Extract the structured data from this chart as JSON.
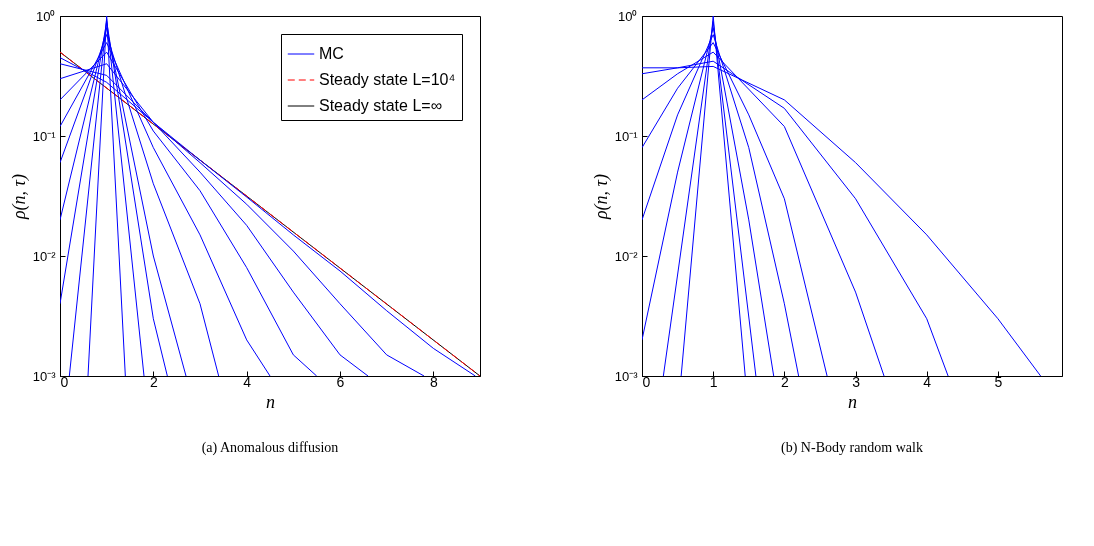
{
  "chart_data": [
    {
      "type": "line",
      "title": "(a) Anomalous diffusion",
      "xlabel": "n",
      "ylabel": "ρ(n, τ)",
      "log": "y",
      "grid": false,
      "legend": "top right",
      "marker": "none",
      "xlim": [
        0,
        9
      ],
      "xticks": [
        0,
        2,
        4,
        6,
        8
      ],
      "ylim": [
        0.001,
        1
      ],
      "yticks": [
        {
          "value": 0.001,
          "label": "10⁻³"
        },
        {
          "value": 0.01,
          "label": "10⁻²"
        },
        {
          "value": 0.1,
          "label": "10⁻¹"
        },
        {
          "value": 1,
          "label": "10⁰"
        }
      ],
      "series": [
        {
          "name": "MC",
          "color": "#0000ff",
          "line_style": "solid",
          "x": [
            0.6,
            1,
            1.4
          ],
          "values": [
            0.001,
            1,
            0.001
          ]
        },
        {
          "color": "#0000ff",
          "line_style": "solid",
          "x": [
            0.2,
            1,
            1.8
          ],
          "values": [
            0.001,
            0.95,
            0.001
          ]
        },
        {
          "color": "#0000ff",
          "line_style": "solid",
          "x": [
            0,
            1,
            2,
            2.3
          ],
          "values": [
            0.004,
            0.9,
            0.003,
            0.001
          ]
        },
        {
          "color": "#0000ff",
          "line_style": "solid",
          "x": [
            0,
            1,
            2,
            2.7
          ],
          "values": [
            0.02,
            0.8,
            0.01,
            0.001
          ]
        },
        {
          "color": "#0000ff",
          "line_style": "solid",
          "x": [
            0,
            1,
            2,
            3,
            3.4
          ],
          "values": [
            0.06,
            0.7,
            0.04,
            0.004,
            0.001
          ]
        },
        {
          "color": "#0000ff",
          "line_style": "solid",
          "x": [
            0,
            1,
            2,
            3,
            4,
            4.5
          ],
          "values": [
            0.12,
            0.6,
            0.08,
            0.015,
            0.002,
            0.001
          ]
        },
        {
          "color": "#0000ff",
          "line_style": "solid",
          "x": [
            0,
            1,
            2,
            3,
            4,
            5,
            5.5
          ],
          "values": [
            0.2,
            0.5,
            0.11,
            0.035,
            0.008,
            0.0015,
            0.001
          ]
        },
        {
          "color": "#0000ff",
          "line_style": "solid",
          "x": [
            0,
            1,
            2,
            3,
            4,
            5,
            6,
            6.6
          ],
          "values": [
            0.3,
            0.4,
            0.13,
            0.05,
            0.018,
            0.005,
            0.0015,
            0.001
          ]
        },
        {
          "color": "#0000ff",
          "line_style": "solid",
          "x": [
            0,
            1,
            2,
            3,
            4,
            5,
            6,
            7,
            7.8
          ],
          "values": [
            0.4,
            0.32,
            0.13,
            0.06,
            0.027,
            0.011,
            0.004,
            0.0015,
            0.001
          ]
        },
        {
          "color": "#0000ff",
          "line_style": "solid",
          "x": [
            0,
            1,
            2,
            3,
            4,
            5,
            6,
            7,
            8,
            8.9
          ],
          "values": [
            0.45,
            0.28,
            0.13,
            0.063,
            0.031,
            0.015,
            0.0075,
            0.0035,
            0.0017,
            0.001
          ]
        },
        {
          "name": "Steady state L=10⁴",
          "color": "#ff0000",
          "line_style": "dashed",
          "x": [
            0,
            9
          ],
          "values": [
            0.5,
            0.001
          ]
        },
        {
          "name": "Steady state L=∞",
          "color": "#000000",
          "line_style": "solid",
          "x": [
            0,
            9
          ],
          "values": [
            0.5,
            0.001
          ]
        }
      ]
    },
    {
      "type": "line",
      "title": "(b) N-Body random walk",
      "xlabel": "n",
      "ylabel": "ρ(n, τ)",
      "log": "y",
      "grid": false,
      "marker": "none",
      "xlim": [
        0,
        5.9
      ],
      "xticks": [
        0,
        1,
        2,
        3,
        4,
        5
      ],
      "ylim": [
        0.001,
        1
      ],
      "yticks": [
        {
          "value": 0.001,
          "label": "10⁻³"
        },
        {
          "value": 0.01,
          "label": "10⁻²"
        },
        {
          "value": 0.1,
          "label": "10⁻¹"
        },
        {
          "value": 1,
          "label": "10⁰"
        }
      ],
      "series": [
        {
          "color": "#0000ff",
          "line_style": "solid",
          "x": [
            0.55,
            1,
            1.45
          ],
          "values": [
            0.001,
            1,
            0.001
          ]
        },
        {
          "color": "#0000ff",
          "line_style": "solid",
          "x": [
            0.3,
            1,
            1.6
          ],
          "values": [
            0.001,
            0.9,
            0.001
          ]
        },
        {
          "color": "#0000ff",
          "line_style": "solid",
          "x": [
            0,
            0.5,
            1,
            1.5,
            1.85
          ],
          "values": [
            0.002,
            0.05,
            0.8,
            0.02,
            0.001
          ]
        },
        {
          "color": "#0000ff",
          "line_style": "solid",
          "x": [
            0,
            0.5,
            1,
            1.5,
            2,
            2.2
          ],
          "values": [
            0.02,
            0.15,
            0.7,
            0.08,
            0.004,
            0.001
          ]
        },
        {
          "color": "#0000ff",
          "line_style": "solid",
          "x": [
            0,
            0.5,
            1,
            1.5,
            2,
            2.6
          ],
          "values": [
            0.08,
            0.25,
            0.6,
            0.15,
            0.03,
            0.001
          ]
        },
        {
          "color": "#0000ff",
          "line_style": "solid",
          "x": [
            0,
            0.5,
            1,
            2,
            3,
            3.4
          ],
          "values": [
            0.2,
            0.33,
            0.5,
            0.12,
            0.005,
            0.001
          ]
        },
        {
          "color": "#0000ff",
          "line_style": "solid",
          "x": [
            0,
            0.5,
            1,
            2,
            3,
            4,
            4.3
          ],
          "values": [
            0.33,
            0.37,
            0.42,
            0.17,
            0.03,
            0.003,
            0.001
          ]
        },
        {
          "color": "#0000ff",
          "line_style": "solid",
          "x": [
            0,
            0.5,
            1,
            2,
            3,
            4,
            5,
            5.6
          ],
          "values": [
            0.37,
            0.37,
            0.38,
            0.2,
            0.06,
            0.015,
            0.003,
            0.001
          ]
        }
      ]
    }
  ]
}
